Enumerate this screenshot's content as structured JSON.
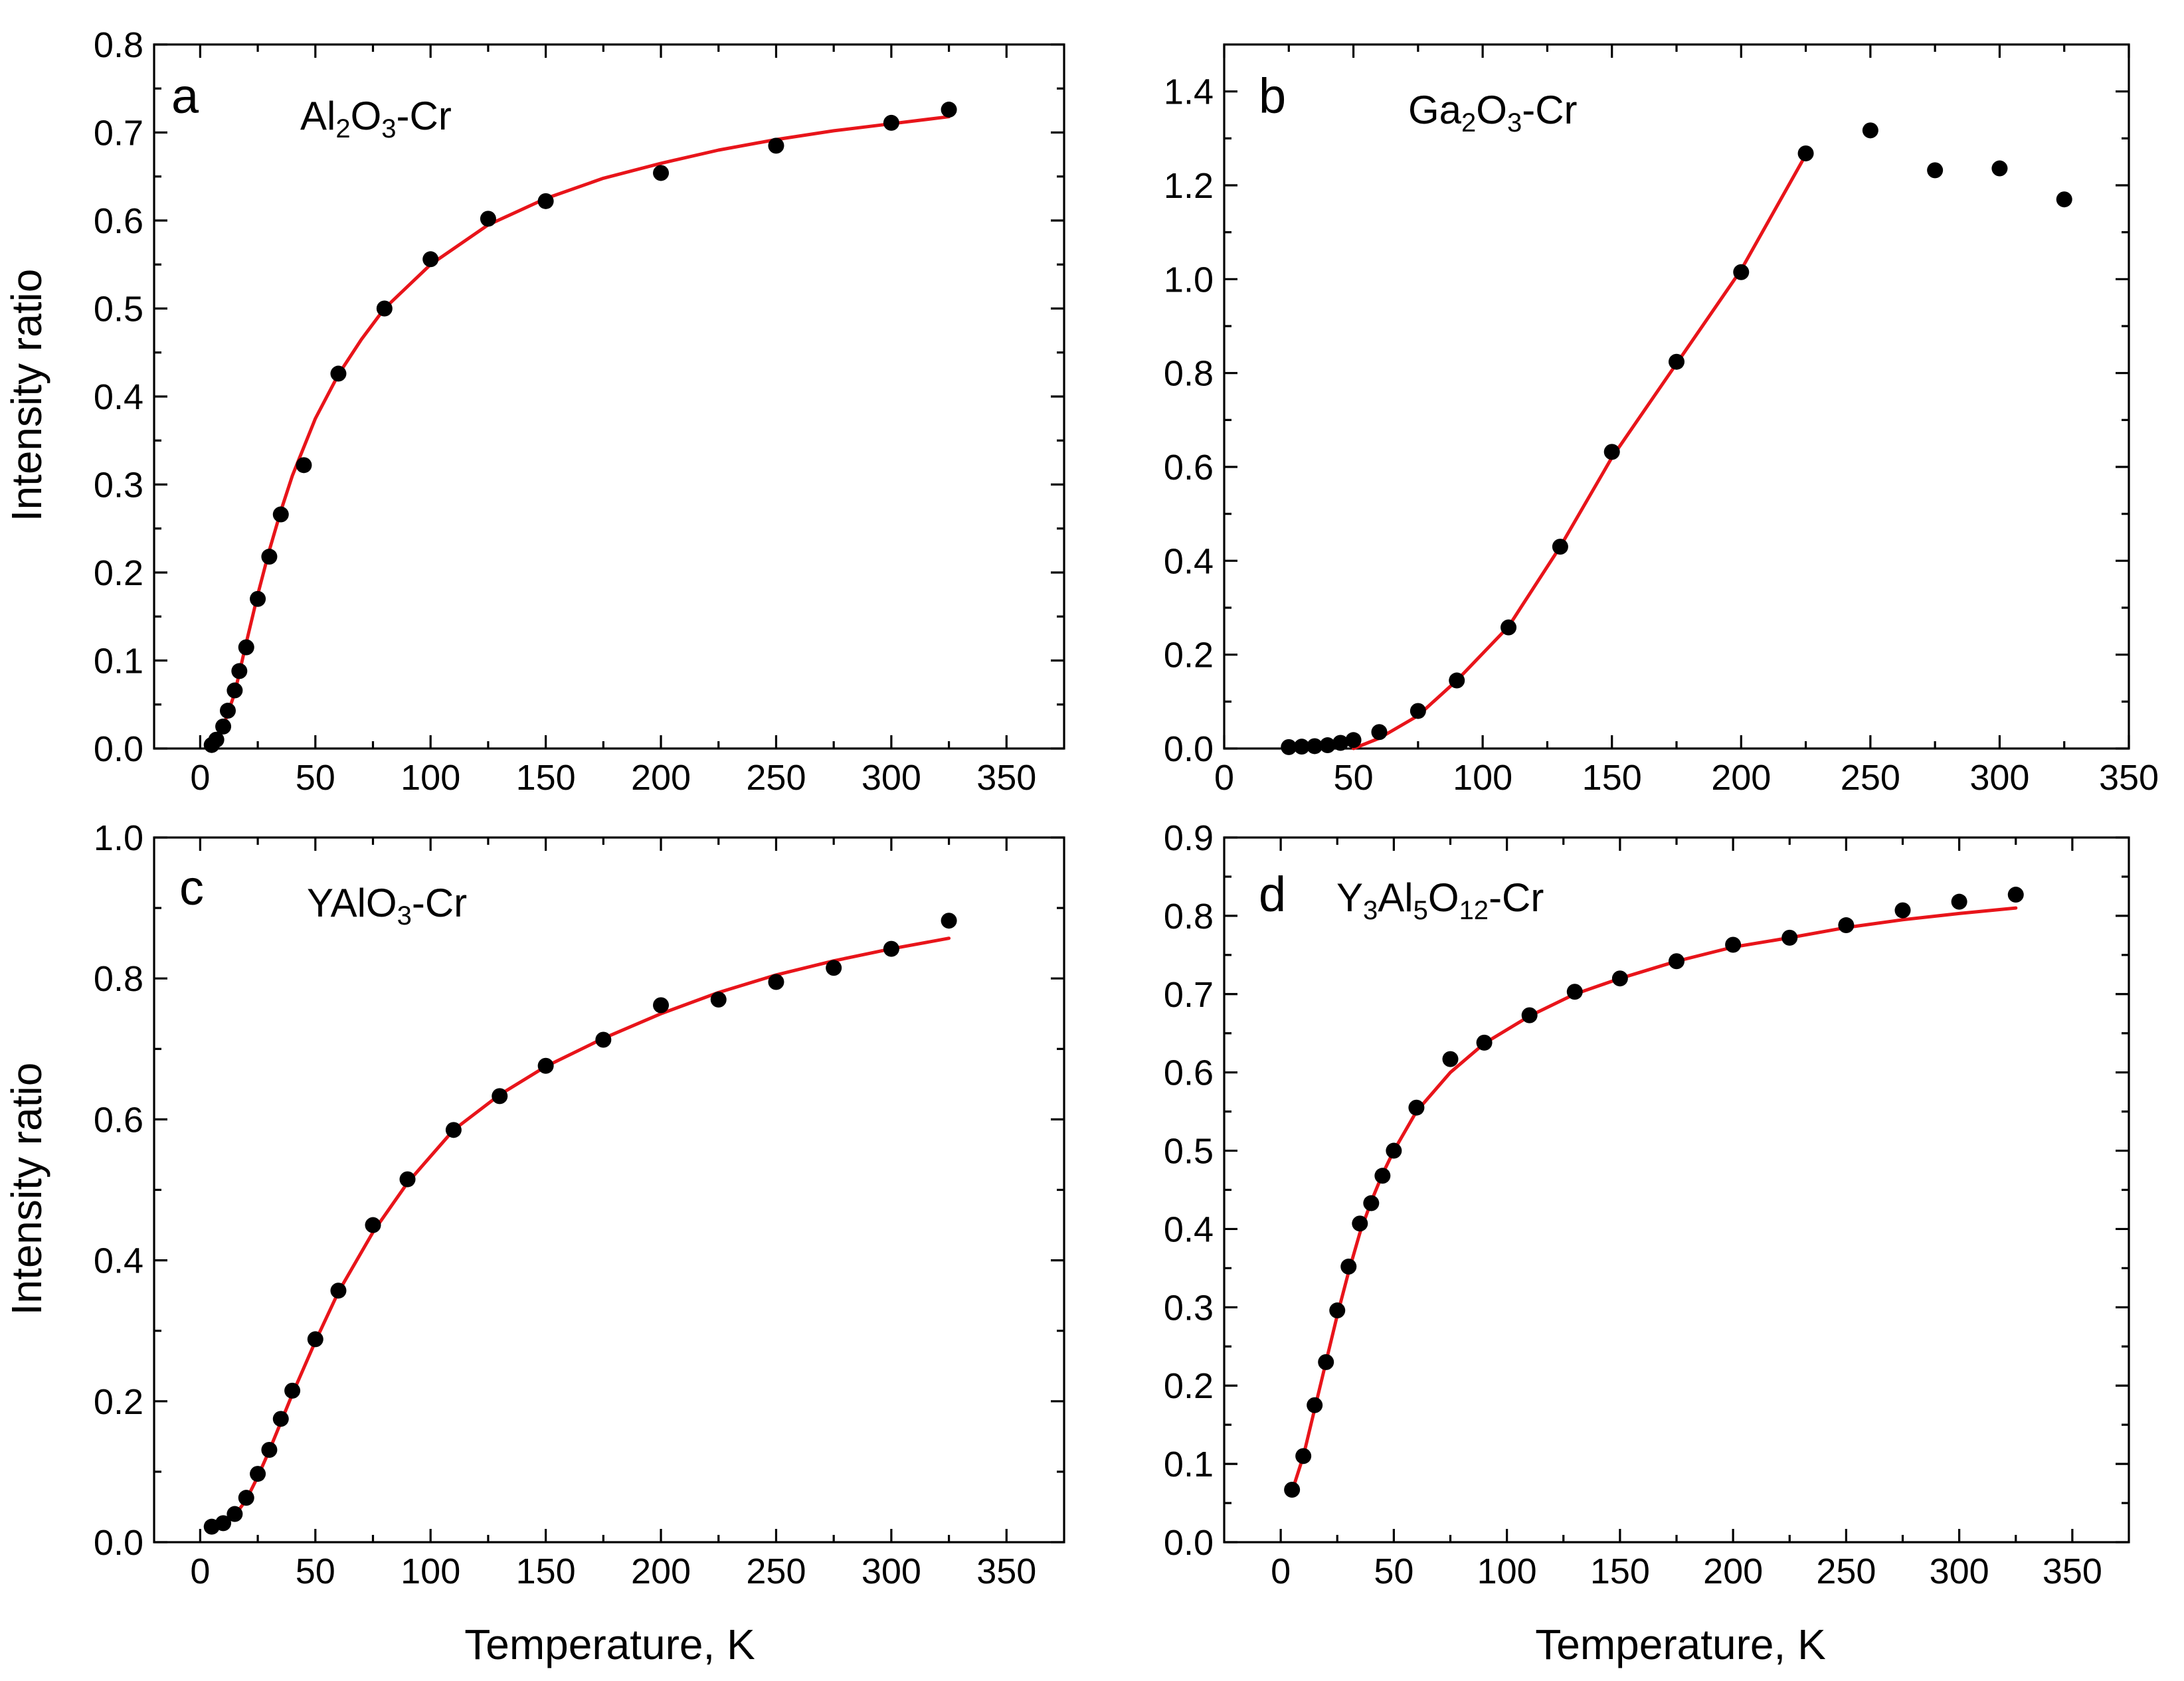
{
  "figure": {
    "xlabel": "Temperature, K",
    "ylabel": "Intensity ratio"
  },
  "chart_data": [
    {
      "id": "a",
      "type": "scatter",
      "panel_label": "a",
      "title_parts": [
        "Al",
        "2",
        "O",
        "3",
        "-Cr"
      ],
      "xlabel": "",
      "ylabel": "Intensity ratio",
      "xlim": [
        -20,
        375
      ],
      "ylim": [
        0,
        0.8
      ],
      "xticks": [
        0,
        50,
        100,
        150,
        200,
        250,
        300,
        350
      ],
      "yticks": [
        0.0,
        0.1,
        0.2,
        0.3,
        0.4,
        0.5,
        0.6,
        0.7,
        0.8
      ],
      "ytick_labels": [
        "0.0",
        "0.1",
        "0.2",
        "0.3",
        "0.4",
        "0.5",
        "0.6",
        "0.7",
        "0.8"
      ],
      "series": [
        {
          "name": "data",
          "x": [
            5,
            7,
            10,
            12,
            15,
            17,
            20,
            25,
            30,
            35,
            45,
            60,
            80,
            100,
            125,
            150,
            200,
            250,
            300,
            325
          ],
          "y": [
            0.004,
            0.01,
            0.025,
            0.043,
            0.066,
            0.088,
            0.115,
            0.17,
            0.218,
            0.266,
            0.322,
            0.426,
            0.5,
            0.556,
            0.602,
            0.622,
            0.654,
            0.685,
            0.711,
            0.726
          ]
        },
        {
          "name": "fit",
          "style": "line",
          "color": "#e8141a",
          "x": [
            4,
            10,
            15,
            20,
            25,
            30,
            35,
            40,
            50,
            60,
            70,
            80,
            100,
            125,
            150,
            175,
            200,
            225,
            250,
            275,
            300,
            325
          ],
          "y": [
            0.0,
            0.025,
            0.063,
            0.12,
            0.175,
            0.225,
            0.27,
            0.31,
            0.375,
            0.425,
            0.465,
            0.5,
            0.55,
            0.595,
            0.625,
            0.648,
            0.665,
            0.68,
            0.692,
            0.702,
            0.71,
            0.718
          ]
        }
      ]
    },
    {
      "id": "b",
      "type": "scatter",
      "panel_label": "b",
      "title_parts": [
        "Ga",
        "2",
        "O",
        "3",
        "-Cr"
      ],
      "xlabel": "",
      "ylabel": "",
      "xlim": [
        0,
        350
      ],
      "ylim": [
        0,
        1.5
      ],
      "xticks": [
        0,
        50,
        100,
        150,
        200,
        250,
        300,
        350
      ],
      "yticks": [
        0.0,
        0.2,
        0.4,
        0.6,
        0.8,
        1.0,
        1.2,
        1.4
      ],
      "ytick_labels": [
        "0.0",
        "0.2",
        "0.4",
        "0.6",
        "0.8",
        "1.0",
        "1.2",
        "1.4"
      ],
      "series": [
        {
          "name": "data",
          "x": [
            25,
            30,
            35,
            40,
            45,
            50,
            60,
            75,
            90,
            110,
            130,
            150,
            175,
            200,
            225,
            250,
            275,
            300,
            325
          ],
          "y": [
            0.003,
            0.004,
            0.005,
            0.007,
            0.012,
            0.018,
            0.035,
            0.08,
            0.145,
            0.258,
            0.43,
            0.632,
            0.824,
            1.015,
            1.268,
            1.317,
            1.232,
            1.236,
            1.17
          ]
        },
        {
          "name": "fit",
          "style": "line",
          "color": "#e8141a",
          "x": [
            50,
            60,
            75,
            90,
            110,
            130,
            150,
            175,
            200,
            225
          ],
          "y": [
            0.0,
            0.022,
            0.07,
            0.145,
            0.26,
            0.43,
            0.62,
            0.82,
            1.02,
            1.265
          ]
        }
      ]
    },
    {
      "id": "c",
      "type": "scatter",
      "panel_label": "c",
      "title_parts": [
        "YAlO",
        "3",
        "-Cr"
      ],
      "xlabel": "Temperature, K",
      "ylabel": "Intensity ratio",
      "xlim": [
        -20,
        375
      ],
      "ylim": [
        0,
        1.0
      ],
      "xticks": [
        0,
        50,
        100,
        150,
        200,
        250,
        300,
        350
      ],
      "yticks": [
        0.0,
        0.2,
        0.4,
        0.6,
        0.8,
        1.0
      ],
      "ytick_labels": [
        "0.0",
        "0.2",
        "0.4",
        "0.6",
        "0.8",
        "1.0"
      ],
      "series": [
        {
          "name": "data",
          "x": [
            5,
            10,
            15,
            20,
            25,
            30,
            35,
            40,
            50,
            60,
            75,
            90,
            110,
            130,
            150,
            175,
            200,
            225,
            250,
            275,
            300,
            325
          ],
          "y": [
            0.022,
            0.027,
            0.04,
            0.063,
            0.097,
            0.131,
            0.175,
            0.215,
            0.288,
            0.357,
            0.45,
            0.515,
            0.585,
            0.633,
            0.676,
            0.713,
            0.762,
            0.77,
            0.795,
            0.815,
            0.842,
            0.882
          ]
        },
        {
          "name": "fit",
          "style": "line",
          "color": "#e8141a",
          "x": [
            5,
            10,
            15,
            20,
            25,
            30,
            35,
            40,
            50,
            60,
            75,
            90,
            110,
            130,
            150,
            175,
            200,
            225,
            250,
            275,
            300,
            325
          ],
          "y": [
            0.02,
            0.026,
            0.038,
            0.06,
            0.093,
            0.13,
            0.17,
            0.21,
            0.285,
            0.355,
            0.44,
            0.51,
            0.585,
            0.635,
            0.675,
            0.715,
            0.75,
            0.78,
            0.805,
            0.825,
            0.842,
            0.857
          ]
        }
      ]
    },
    {
      "id": "d",
      "type": "scatter",
      "panel_label": "d",
      "title_parts": [
        "Y",
        "3",
        "Al",
        "5",
        "O",
        "12",
        "-Cr"
      ],
      "xlabel": "Temperature, K",
      "ylabel": "",
      "xlim": [
        -25,
        375
      ],
      "ylim": [
        0,
        0.9
      ],
      "xticks": [
        0,
        50,
        100,
        150,
        200,
        250,
        300,
        350
      ],
      "yticks": [
        0.0,
        0.1,
        0.2,
        0.3,
        0.4,
        0.5,
        0.6,
        0.7,
        0.8,
        0.9
      ],
      "ytick_labels": [
        "0.0",
        "0.1",
        "0.2",
        "0.3",
        "0.4",
        "0.5",
        "0.6",
        "0.7",
        "0.8",
        "0.9"
      ],
      "series": [
        {
          "name": "data",
          "x": [
            5,
            10,
            15,
            20,
            25,
            30,
            35,
            40,
            45,
            50,
            60,
            75,
            90,
            110,
            130,
            150,
            175,
            200,
            225,
            250,
            275,
            300,
            325
          ],
          "y": [
            0.067,
            0.11,
            0.175,
            0.23,
            0.296,
            0.352,
            0.407,
            0.433,
            0.468,
            0.5,
            0.555,
            0.617,
            0.638,
            0.673,
            0.703,
            0.72,
            0.742,
            0.763,
            0.772,
            0.788,
            0.807,
            0.818,
            0.827
          ]
        },
        {
          "name": "fit",
          "style": "line",
          "color": "#e8141a",
          "x": [
            5,
            10,
            15,
            20,
            25,
            30,
            35,
            40,
            45,
            50,
            60,
            75,
            90,
            110,
            130,
            150,
            175,
            200,
            225,
            250,
            275,
            300,
            325
          ],
          "y": [
            0.065,
            0.11,
            0.17,
            0.23,
            0.29,
            0.345,
            0.395,
            0.435,
            0.47,
            0.5,
            0.55,
            0.6,
            0.637,
            0.672,
            0.7,
            0.72,
            0.742,
            0.76,
            0.772,
            0.785,
            0.795,
            0.803,
            0.81
          ]
        }
      ]
    }
  ]
}
